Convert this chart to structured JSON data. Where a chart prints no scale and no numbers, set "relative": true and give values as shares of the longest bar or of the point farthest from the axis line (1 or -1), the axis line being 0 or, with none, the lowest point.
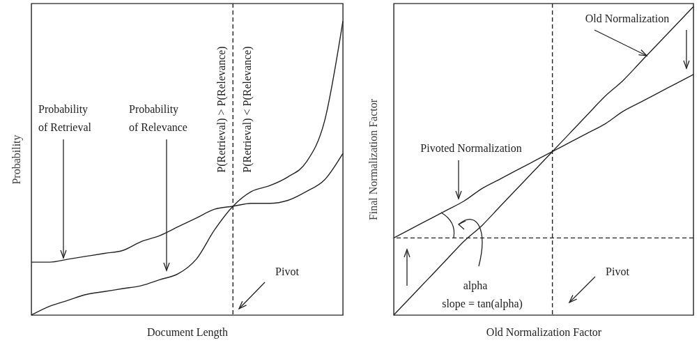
{
  "chart_data": [
    {
      "type": "line",
      "xlabel": "Document Length",
      "ylabel": "Probability",
      "relative": true,
      "categories": [
        null,
        null,
        null,
        null,
        null,
        null,
        null,
        null,
        null,
        null,
        null,
        null,
        null,
        null,
        null,
        null,
        null,
        null
      ],
      "series": [
        {
          "color": "#222222",
          "values": [
            0.18,
            0.18,
            0.19,
            0.2,
            0.21,
            0.22,
            0.25,
            0.27,
            0.3,
            0.33,
            0.36,
            0.37,
            0.38,
            0.38,
            0.39,
            0.42,
            0.46,
            0.55
          ]
        },
        {
          "color": "#222222",
          "values": [
            0,
            0.03,
            0.05,
            0.07,
            0.08,
            0.09,
            0.1,
            0.12,
            0.14,
            0.19,
            0.29,
            0.37,
            0.42,
            0.44,
            0.47,
            0.52,
            0.66,
            1
          ]
        }
      ],
      "annotations": [
        "Probability of Retrieval",
        "Probability of Relevance",
        "P(Retrieval) > P(Relevance)",
        "P(Retrieval) < P(Relevance)",
        "Pivot"
      ]
    },
    {
      "type": "line",
      "xlabel": "Old Normalization Factor",
      "ylabel": "Final Normalization Factor",
      "relative": true,
      "categories": [
        null,
        null,
        null,
        null,
        null,
        null,
        null,
        null,
        null,
        null,
        null,
        null,
        null,
        null,
        null,
        null,
        null,
        null
      ],
      "series": [
        {
          "color": "#222222",
          "values": [
            0,
            0.06,
            0.12,
            0.18,
            0.24,
            0.29,
            0.35,
            0.41,
            0.47,
            0.53,
            0.59,
            0.65,
            0.71,
            0.76,
            0.82,
            0.88,
            0.94,
            1
          ]
        },
        {
          "color": "#222222",
          "values": [
            0.25,
            0.28,
            0.31,
            0.34,
            0.37,
            0.41,
            0.44,
            0.47,
            0.5,
            0.53,
            0.56,
            0.59,
            0.62,
            0.66,
            0.69,
            0.72,
            0.75,
            0.78
          ]
        }
      ],
      "ref_lines": [
        {
          "axis": "y",
          "value": 0.25,
          "line_style": "dashed"
        }
      ],
      "annotations": [
        "Old Normalization",
        "Pivoted Normalization",
        "alpha",
        "slope = tan(alpha)",
        "Pivot"
      ]
    }
  ]
}
